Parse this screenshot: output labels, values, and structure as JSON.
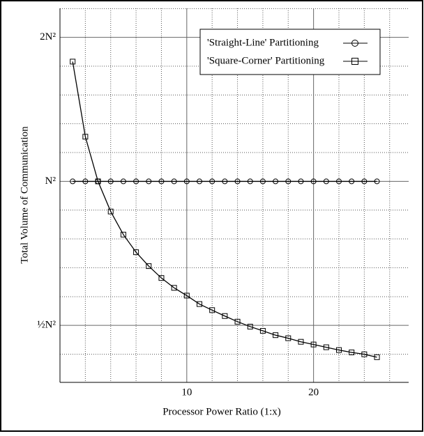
{
  "chart_data": {
    "type": "line",
    "x_label": "Processor Power Ratio (1:x)",
    "y_label": "Total Volume of Communication",
    "x": [
      1,
      2,
      3,
      4,
      5,
      6,
      7,
      8,
      9,
      10,
      11,
      12,
      13,
      14,
      15,
      16,
      17,
      18,
      19,
      20,
      21,
      22,
      23,
      24,
      25
    ],
    "series": [
      {
        "name": "'Straight-Line' Partitioning",
        "color": "#000000",
        "marker": "circle",
        "values": [
          1,
          1,
          1,
          1,
          1,
          1,
          1,
          1,
          1,
          1,
          1,
          1,
          1,
          1,
          1,
          1,
          1,
          1,
          1,
          1,
          1,
          1,
          1,
          1,
          1
        ]
      },
      {
        "name": "'Square-Corner' Partitioning",
        "color": "#000000",
        "marker": "square",
        "values": [
          1.78,
          1.24,
          1.0,
          0.865,
          0.774,
          0.711,
          0.665,
          0.628,
          0.599,
          0.577,
          0.554,
          0.538,
          0.523,
          0.509,
          0.497,
          0.487,
          0.477,
          0.47,
          0.462,
          0.456,
          0.45,
          0.444,
          0.439,
          0.435,
          0.429
        ]
      }
    ],
    "xlim": [
      0,
      27.5
    ],
    "xticks": [
      10,
      20
    ],
    "xminor": [
      2,
      4,
      6,
      8,
      12,
      14,
      16,
      18,
      22,
      24,
      26
    ],
    "ylim": [
      0.38,
      2.3
    ],
    "ylog": true,
    "yticks": [
      {
        "value": 0.5,
        "label": "½N²"
      },
      {
        "value": 1,
        "label": "N²"
      },
      {
        "value": 2,
        "label": "2N²"
      }
    ],
    "yminor": [
      0.435,
      0.574,
      0.66,
      0.758,
      0.871,
      1.149,
      1.32,
      1.516,
      1.741,
      2.297
    ],
    "grid": true,
    "legend": "top-right"
  }
}
